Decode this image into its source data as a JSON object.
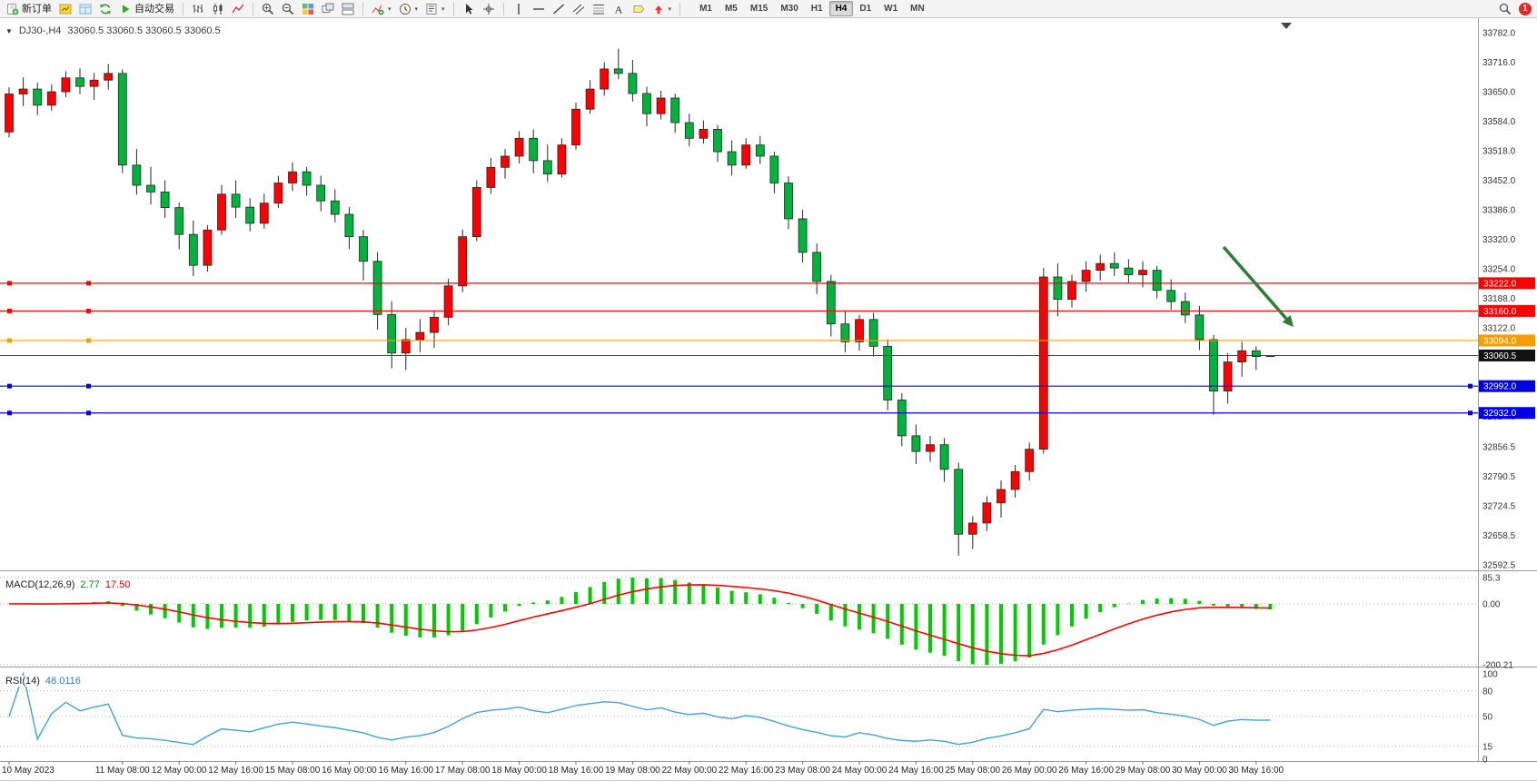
{
  "window": {
    "symbol_period": "DJ30-,H4",
    "ohlc": "33060.5 33060.5 33060.5 33060.5"
  },
  "toolbar": {
    "new_order_label": "新订单",
    "autotrading_label": "自动交易",
    "notification_count": "1",
    "timeframes": [
      "M1",
      "M5",
      "M15",
      "M30",
      "H1",
      "H4",
      "D1",
      "W1",
      "MN"
    ],
    "active_timeframe": "H4",
    "buttons": [
      {
        "name": "new-order-button",
        "icon": "new-order",
        "label_key": "new_order_label"
      },
      {
        "name": "market-watch-button",
        "icon": "market-watch"
      },
      {
        "name": "data-window-button",
        "icon": "data-window"
      },
      {
        "name": "refresh-button",
        "icon": "refresh"
      },
      {
        "name": "autotrading-button",
        "icon": "play",
        "label_key": "autotrading_label"
      },
      {
        "sep": true
      },
      {
        "name": "bar-chart-button",
        "icon": "bar-chart"
      },
      {
        "name": "candlestick-chart-button",
        "icon": "candlestick"
      },
      {
        "name": "line-chart-button",
        "icon": "line-chart"
      },
      {
        "sep": true
      },
      {
        "name": "zoom-in-button",
        "icon": "zoom-in"
      },
      {
        "name": "zoom-out-button",
        "icon": "zoom-out"
      },
      {
        "name": "tile-windows-button",
        "icon": "tile"
      },
      {
        "name": "cascade-windows-button",
        "icon": "cascade"
      },
      {
        "name": "arrange-windows-button",
        "icon": "arrange"
      },
      {
        "sep": true
      },
      {
        "name": "indicators-button",
        "icon": "indicators",
        "caret": true
      },
      {
        "name": "periods-button",
        "icon": "clock",
        "caret": true
      },
      {
        "name": "templates-button",
        "icon": "template",
        "caret": true
      },
      {
        "sep": true
      },
      {
        "name": "cursor-button",
        "icon": "cursor"
      },
      {
        "name": "crosshair-button",
        "icon": "crosshair"
      },
      {
        "sep": true
      },
      {
        "name": "vertical-line-button",
        "icon": "vline"
      },
      {
        "name": "horizontal-line-button",
        "icon": "hline"
      },
      {
        "name": "trendline-button",
        "icon": "tline"
      },
      {
        "name": "channel-button",
        "icon": "channel"
      },
      {
        "name": "fibonacci-button",
        "icon": "fibo"
      },
      {
        "name": "text-button",
        "icon": "text"
      },
      {
        "name": "label-button",
        "icon": "label"
      },
      {
        "name": "arrows-button",
        "icon": "arrows",
        "caret": true
      },
      {
        "sep": true
      }
    ]
  },
  "price_axis": {
    "max": 33782.0,
    "min": 32592.5,
    "ticks": [
      33782.0,
      33716.0,
      33650.0,
      33584.0,
      33518.0,
      33452.0,
      33386.0,
      33320.0,
      33254.0,
      33188.0,
      33122.0,
      33056.0,
      32990.0,
      32924.0,
      32856.5,
      32790.5,
      32724.5,
      32658.5,
      32592.5
    ]
  },
  "hlines": [
    {
      "price": 33222.0,
      "label": "33222.0",
      "color": "#ff0000",
      "selected": false
    },
    {
      "price": 33160.0,
      "label": "33160.0",
      "color": "#ff0000",
      "selected": false
    },
    {
      "price": 33094.0,
      "label": "33094.0",
      "color": "#f59e00",
      "selected": false
    },
    {
      "price": 32992.0,
      "label": "32992.0",
      "color": "#0000e6",
      "selected": true
    },
    {
      "price": 32932.0,
      "label": "32932.0",
      "color": "#0000e6",
      "selected": true
    }
  ],
  "current_price": {
    "value": 33060.5,
    "label": "33060.5",
    "line_color": "#444444",
    "box_color": "#111111"
  },
  "chart_data": {
    "type": "candlestick",
    "symbol": "DJ30-",
    "timeframe": "H4",
    "title": "DJ30-,H4 33060.5 33060.5 33060.5 33060.5",
    "price_range": [
      32592.5,
      33782.0
    ],
    "bull_color": "#ff0000",
    "bear_color": "#00b33c",
    "wick_color": "#262626",
    "bars": [
      [
        33560,
        33660,
        33548,
        33645
      ],
      [
        33645,
        33682,
        33618,
        33656
      ],
      [
        33656,
        33670,
        33598,
        33620
      ],
      [
        33620,
        33666,
        33608,
        33650
      ],
      [
        33650,
        33696,
        33638,
        33681
      ],
      [
        33681,
        33702,
        33645,
        33662
      ],
      [
        33662,
        33692,
        33632,
        33676
      ],
      [
        33676,
        33712,
        33655,
        33691
      ],
      [
        33691,
        33700,
        33468,
        33486
      ],
      [
        33486,
        33522,
        33420,
        33441
      ],
      [
        33441,
        33482,
        33398,
        33426
      ],
      [
        33426,
        33452,
        33368,
        33391
      ],
      [
        33391,
        33402,
        33298,
        33331
      ],
      [
        33331,
        33362,
        33238,
        33262
      ],
      [
        33262,
        33352,
        33248,
        33341
      ],
      [
        33341,
        33442,
        33330,
        33421
      ],
      [
        33421,
        33452,
        33368,
        33392
      ],
      [
        33392,
        33412,
        33338,
        33356
      ],
      [
        33356,
        33422,
        33344,
        33401
      ],
      [
        33401,
        33462,
        33390,
        33446
      ],
      [
        33446,
        33492,
        33428,
        33471
      ],
      [
        33471,
        33482,
        33418,
        33441
      ],
      [
        33441,
        33462,
        33383,
        33406
      ],
      [
        33406,
        33432,
        33358,
        33376
      ],
      [
        33376,
        33392,
        33298,
        33326
      ],
      [
        33326,
        33341,
        33228,
        33271
      ],
      [
        33271,
        33292,
        33118,
        33152
      ],
      [
        33152,
        33182,
        33032,
        33066
      ],
      [
        33066,
        33122,
        33028,
        33096
      ],
      [
        33096,
        33142,
        33068,
        33112
      ],
      [
        33112,
        33162,
        33078,
        33146
      ],
      [
        33146,
        33232,
        33128,
        33216
      ],
      [
        33216,
        33342,
        33202,
        33326
      ],
      [
        33326,
        33452,
        33316,
        33436
      ],
      [
        33436,
        33502,
        33422,
        33481
      ],
      [
        33481,
        33522,
        33456,
        33506
      ],
      [
        33506,
        33562,
        33490,
        33546
      ],
      [
        33546,
        33566,
        33468,
        33496
      ],
      [
        33496,
        33532,
        33448,
        33466
      ],
      [
        33466,
        33546,
        33458,
        33531
      ],
      [
        33531,
        33626,
        33521,
        33611
      ],
      [
        33611,
        33676,
        33601,
        33656
      ],
      [
        33656,
        33716,
        33641,
        33701
      ],
      [
        33701,
        33746,
        33678,
        33691
      ],
      [
        33691,
        33721,
        33628,
        33646
      ],
      [
        33646,
        33661,
        33573,
        33601
      ],
      [
        33601,
        33652,
        33588,
        33636
      ],
      [
        33636,
        33646,
        33558,
        33581
      ],
      [
        33581,
        33601,
        33528,
        33546
      ],
      [
        33546,
        33586,
        33534,
        33566
      ],
      [
        33566,
        33576,
        33493,
        33516
      ],
      [
        33516,
        33541,
        33463,
        33486
      ],
      [
        33486,
        33546,
        33478,
        33531
      ],
      [
        33531,
        33551,
        33488,
        33506
      ],
      [
        33506,
        33516,
        33423,
        33446
      ],
      [
        33446,
        33461,
        33343,
        33366
      ],
      [
        33366,
        33386,
        33268,
        33291
      ],
      [
        33291,
        33311,
        33198,
        33226
      ],
      [
        33226,
        33241,
        33103,
        33131
      ],
      [
        33131,
        33161,
        33068,
        33091
      ],
      [
        33091,
        33151,
        33071,
        33141
      ],
      [
        33141,
        33156,
        33058,
        33081
      ],
      [
        33081,
        33096,
        32938,
        32961
      ],
      [
        32961,
        32976,
        32858,
        32881
      ],
      [
        32881,
        32906,
        32818,
        32846
      ],
      [
        32846,
        32881,
        32823,
        32861
      ],
      [
        32861,
        32876,
        32778,
        32806
      ],
      [
        32806,
        32821,
        32613,
        32661
      ],
      [
        32661,
        32701,
        32628,
        32686
      ],
      [
        32686,
        32746,
        32668,
        32731
      ],
      [
        32731,
        32781,
        32698,
        32761
      ],
      [
        32761,
        32816,
        32743,
        32801
      ],
      [
        32801,
        32866,
        32781,
        32851
      ],
      [
        32851,
        33256,
        32841,
        33236
      ],
      [
        33236,
        33266,
        33148,
        33186
      ],
      [
        33186,
        33241,
        33168,
        33226
      ],
      [
        33226,
        33271,
        33203,
        33251
      ],
      [
        33251,
        33286,
        33228,
        33266
      ],
      [
        33266,
        33291,
        33238,
        33256
      ],
      [
        33256,
        33276,
        33223,
        33241
      ],
      [
        33241,
        33271,
        33213,
        33251
      ],
      [
        33251,
        33261,
        33188,
        33206
      ],
      [
        33206,
        33231,
        33163,
        33181
      ],
      [
        33181,
        33201,
        33133,
        33151
      ],
      [
        33151,
        33171,
        33073,
        33096
      ],
      [
        33096,
        33106,
        32928,
        32981
      ],
      [
        32981,
        33066,
        32953,
        33046
      ],
      [
        33046,
        33091,
        33013,
        33071
      ],
      [
        33071,
        33081,
        33028,
        33058
      ],
      [
        33060.5,
        33060.5,
        33060.5,
        33060.5
      ]
    ]
  },
  "macd_panel": {
    "title": "MACD(12,26,9)",
    "value_main": "2.77",
    "value_signal": "17.50",
    "axis_labels": [
      "85.3",
      "0.00",
      "-200.21"
    ],
    "histogram_color": "#00cc00",
    "signal_color": "#ff0000"
  },
  "rsi_panel": {
    "title": "RSI(14)",
    "value": "48.0116",
    "axis_labels": [
      "100",
      "80",
      "50",
      "15",
      "0"
    ],
    "axis_values": [
      100,
      80,
      50,
      15,
      0
    ],
    "levels": [
      80,
      50,
      15
    ],
    "line_color": "#3fa3dc"
  },
  "time_axis": {
    "labels": [
      "10 May 2023",
      "11 May 08:00",
      "12 May 00:00",
      "12 May 16:00",
      "15 May 08:00",
      "16 May 00:00",
      "16 May 16:00",
      "17 May 08:00",
      "18 May 00:00",
      "18 May 16:00",
      "19 May 08:00",
      "22 May 00:00",
      "22 May 16:00",
      "23 May 08:00",
      "24 May 00:00",
      "24 May 16:00",
      "25 May 08:00",
      "26 May 00:00",
      "26 May 16:00",
      "29 May 08:00",
      "30 May 00:00",
      "30 May 16:00"
    ],
    "bar_indices": [
      0,
      8,
      12,
      16,
      20,
      24,
      28,
      32,
      36,
      40,
      44,
      48,
      52,
      56,
      60,
      64,
      68,
      72,
      76,
      80,
      84,
      88
    ]
  },
  "annotation_arrow": {
    "from": [
      1347,
      252
    ],
    "to": [
      1424,
      340
    ],
    "color": "#2e7d32"
  }
}
